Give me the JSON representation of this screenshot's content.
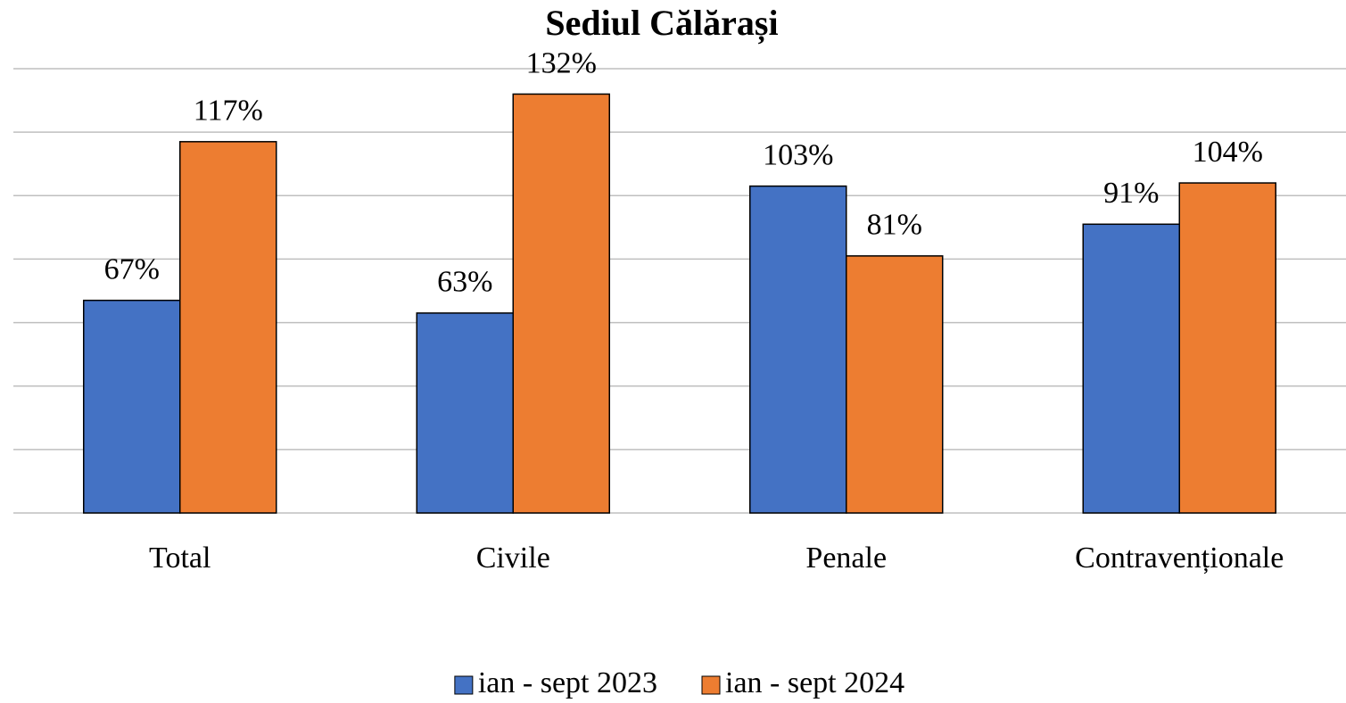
{
  "chart_data": {
    "type": "bar",
    "title": "Sediul Călărași",
    "categories": [
      "Total",
      "Civile",
      "Penale",
      "Contravenționale"
    ],
    "series": [
      {
        "name": "ian - sept 2023",
        "color": "#4472c4",
        "values": [
          67,
          63,
          103,
          91
        ],
        "value_labels": [
          "67%",
          "63%",
          "103%",
          "91%"
        ]
      },
      {
        "name": "ian - sept 2024",
        "color": "#ed7d31",
        "values": [
          117,
          132,
          81,
          104
        ],
        "value_labels": [
          "117%",
          "132%",
          "81%",
          "104%"
        ]
      }
    ],
    "ylim": [
      0,
      140
    ],
    "yticks": [
      0,
      20,
      40,
      60,
      80,
      100,
      120,
      140
    ],
    "grid": true,
    "legend": "bottom"
  }
}
